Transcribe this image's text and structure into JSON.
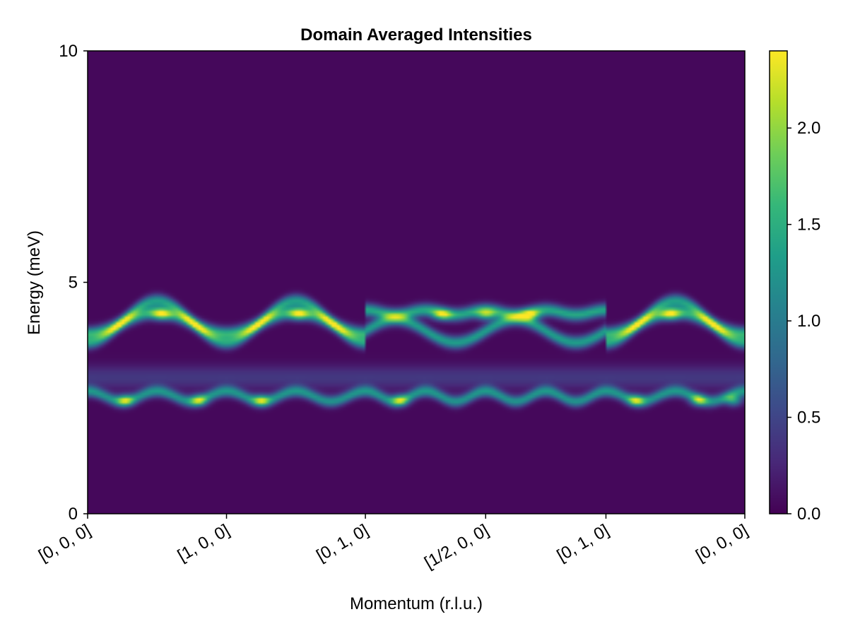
{
  "chart_data": {
    "type": "heatmap",
    "title": "Domain Averaged Intensities",
    "xlabel": "Momentum (r.l.u.)",
    "ylabel": "Energy (meV)",
    "ylim": [
      0,
      10
    ],
    "yticks": [
      0,
      5,
      10
    ],
    "x_ticks": [
      {
        "label": "[0, 0, 0]",
        "pos": 0.0
      },
      {
        "label": "[1, 0, 0]",
        "pos": 1.0
      },
      {
        "label": "[0, 1, 0]",
        "pos": 2.0
      },
      {
        "label": "[1/2, 0, 0]",
        "pos": 2.866
      },
      {
        "label": "[0, 1, 0]",
        "pos": 3.732
      },
      {
        "label": "[0, 0, 0]",
        "pos": 4.732
      }
    ],
    "colorbar": {
      "colormap": "viridis",
      "range": [
        0,
        2.4
      ],
      "ticks": [
        0.0,
        0.5,
        1.0,
        1.5,
        2.0
      ],
      "tick_labels": [
        "0.0",
        "0.5",
        "1.0",
        "1.5",
        "2.0"
      ]
    },
    "bands": [
      {
        "name": "lower band",
        "energy_range": [
          2.2,
          3.0
        ],
        "peak_intensity": 2.4
      },
      {
        "name": "upper band",
        "energy_range": [
          3.6,
          4.7
        ],
        "peak_intensity": 2.4
      }
    ]
  },
  "colors": {
    "viridis": [
      "#440154",
      "#482878",
      "#3e4989",
      "#31688e",
      "#26828e",
      "#1f9e89",
      "#35b779",
      "#6ece58",
      "#b5de2b",
      "#fde725"
    ]
  }
}
